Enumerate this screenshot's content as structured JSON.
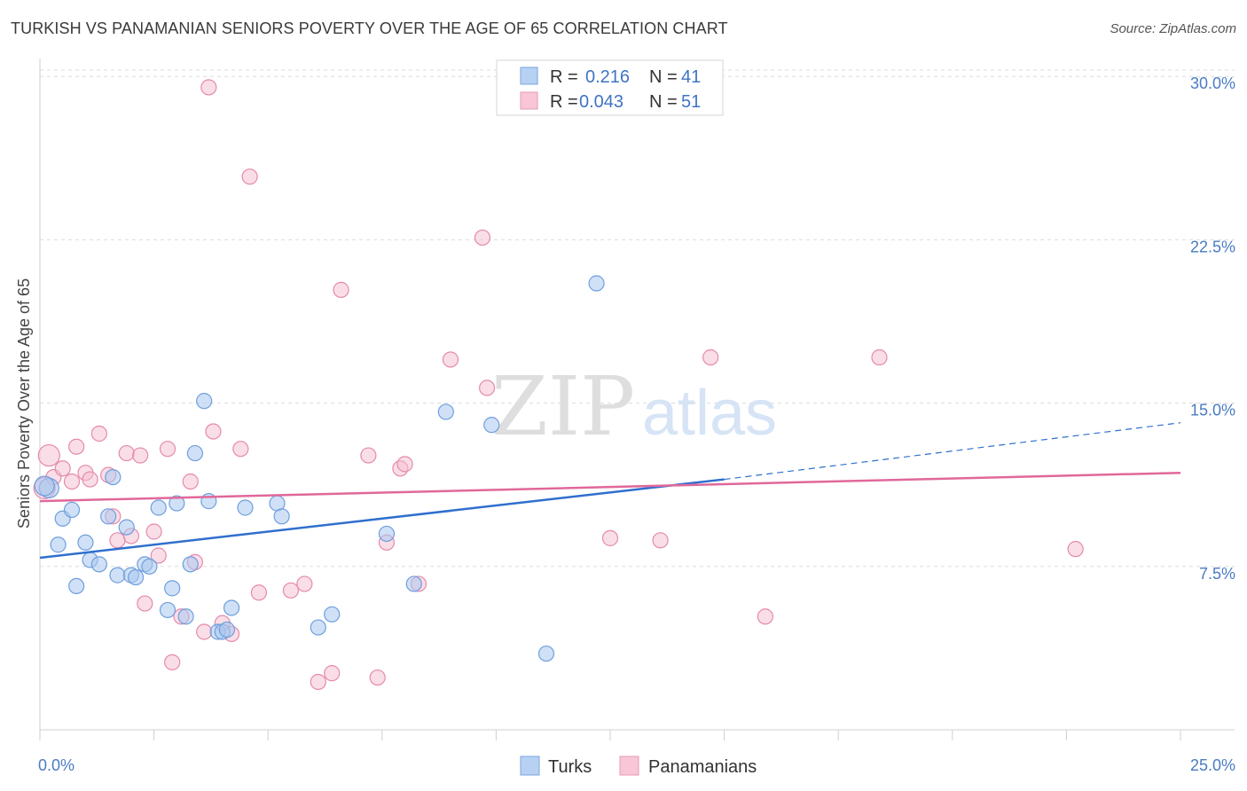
{
  "title": "TURKISH VS PANAMANIAN SENIORS POVERTY OVER THE AGE OF 65 CORRELATION CHART",
  "source": "Source: ZipAtlas.com",
  "watermark": {
    "zip": "ZIP",
    "atlas": "atlas"
  },
  "colors": {
    "turks_fill": "#a9c8f0",
    "turks_stroke": "#6f9fdc",
    "turks_line": "#2f6fce",
    "pan_fill": "#f6bdd0",
    "pan_stroke": "#e58aab",
    "pan_line": "#e0689a",
    "grid": "#dcdcdc",
    "tick_text": "#4a7cc4"
  },
  "legend": {
    "rows": [
      {
        "r_label": "R =",
        "r_value": "0.216",
        "n_label": "N =",
        "n_value": "41"
      },
      {
        "r_label": "R =",
        "r_value": "0.043",
        "n_label": "N =",
        "n_value": "51"
      }
    ]
  },
  "chart_data": {
    "type": "scatter",
    "xlabel": "",
    "ylabel": "Seniors Poverty Over the Age of 65",
    "xlim": [
      0,
      25
    ],
    "ylim": [
      0,
      30.7
    ],
    "x_tick_labels": [
      "0.0%",
      "25.0%"
    ],
    "y_ticks": [
      7.5,
      15.0,
      22.5,
      30.0
    ],
    "y_tick_labels": [
      "7.5%",
      "15.0%",
      "22.5%",
      "30.0%"
    ],
    "grid": "horizontal dashed",
    "legend_placement": "top-center",
    "series": [
      {
        "name": "Turks",
        "trend": {
          "x": [
            0,
            15
          ],
          "y": [
            7.9,
            11.5
          ],
          "dashed_to": [
            25,
            14.1
          ]
        },
        "points": [
          [
            0.2,
            11.1
          ],
          [
            0.4,
            8.5
          ],
          [
            0.5,
            9.7
          ],
          [
            0.7,
            10.1
          ],
          [
            0.8,
            6.6
          ],
          [
            1.0,
            8.6
          ],
          [
            1.1,
            7.8
          ],
          [
            1.3,
            7.6
          ],
          [
            1.5,
            9.8
          ],
          [
            1.6,
            11.6
          ],
          [
            1.7,
            7.1
          ],
          [
            1.9,
            9.3
          ],
          [
            2.0,
            7.1
          ],
          [
            2.1,
            7.0
          ],
          [
            2.3,
            7.6
          ],
          [
            2.4,
            7.5
          ],
          [
            2.6,
            10.2
          ],
          [
            2.8,
            5.5
          ],
          [
            2.9,
            6.5
          ],
          [
            3.0,
            10.4
          ],
          [
            3.2,
            5.2
          ],
          [
            3.3,
            7.6
          ],
          [
            3.4,
            12.7
          ],
          [
            3.6,
            15.1
          ],
          [
            3.7,
            10.5
          ],
          [
            3.9,
            4.5
          ],
          [
            4.0,
            4.5
          ],
          [
            4.1,
            4.6
          ],
          [
            4.2,
            5.6
          ],
          [
            4.5,
            10.2
          ],
          [
            5.2,
            10.4
          ],
          [
            5.3,
            9.8
          ],
          [
            6.1,
            4.7
          ],
          [
            6.4,
            5.3
          ],
          [
            7.6,
            9.0
          ],
          [
            8.2,
            6.7
          ],
          [
            8.9,
            14.6
          ],
          [
            9.9,
            14.0
          ],
          [
            11.1,
            3.5
          ],
          [
            12.2,
            20.5
          ],
          [
            0.1,
            11.2
          ]
        ]
      },
      {
        "name": "Panamanians",
        "trend": {
          "x": [
            0,
            25
          ],
          "y": [
            10.5,
            11.8
          ]
        },
        "points": [
          [
            0.1,
            11.1
          ],
          [
            0.2,
            12.6
          ],
          [
            0.3,
            11.6
          ],
          [
            0.5,
            12.0
          ],
          [
            0.7,
            11.4
          ],
          [
            0.8,
            13.0
          ],
          [
            1.0,
            11.8
          ],
          [
            1.1,
            11.5
          ],
          [
            1.3,
            13.6
          ],
          [
            1.5,
            11.7
          ],
          [
            1.6,
            9.8
          ],
          [
            1.7,
            8.7
          ],
          [
            1.9,
            12.7
          ],
          [
            2.0,
            8.9
          ],
          [
            2.2,
            12.6
          ],
          [
            2.3,
            5.8
          ],
          [
            2.5,
            9.1
          ],
          [
            2.6,
            8.0
          ],
          [
            2.8,
            12.9
          ],
          [
            2.9,
            3.1
          ],
          [
            3.1,
            5.2
          ],
          [
            3.3,
            11.4
          ],
          [
            3.4,
            7.7
          ],
          [
            3.6,
            4.5
          ],
          [
            3.7,
            29.5
          ],
          [
            3.8,
            13.7
          ],
          [
            4.0,
            4.9
          ],
          [
            4.2,
            4.4
          ],
          [
            4.4,
            12.9
          ],
          [
            4.6,
            25.4
          ],
          [
            4.8,
            6.3
          ],
          [
            5.5,
            6.4
          ],
          [
            5.8,
            6.7
          ],
          [
            6.1,
            2.2
          ],
          [
            6.4,
            2.6
          ],
          [
            6.6,
            20.2
          ],
          [
            7.2,
            12.6
          ],
          [
            7.4,
            2.4
          ],
          [
            7.6,
            8.6
          ],
          [
            7.9,
            12.0
          ],
          [
            8.0,
            12.2
          ],
          [
            8.3,
            6.7
          ],
          [
            9.0,
            17.0
          ],
          [
            9.7,
            22.6
          ],
          [
            9.8,
            15.7
          ],
          [
            12.5,
            8.8
          ],
          [
            13.6,
            8.7
          ],
          [
            14.7,
            17.1
          ],
          [
            15.9,
            5.2
          ],
          [
            18.4,
            17.1
          ],
          [
            22.7,
            8.3
          ]
        ]
      }
    ]
  },
  "bottom_legend": [
    {
      "label": "Turks"
    },
    {
      "label": "Panamanians"
    }
  ]
}
